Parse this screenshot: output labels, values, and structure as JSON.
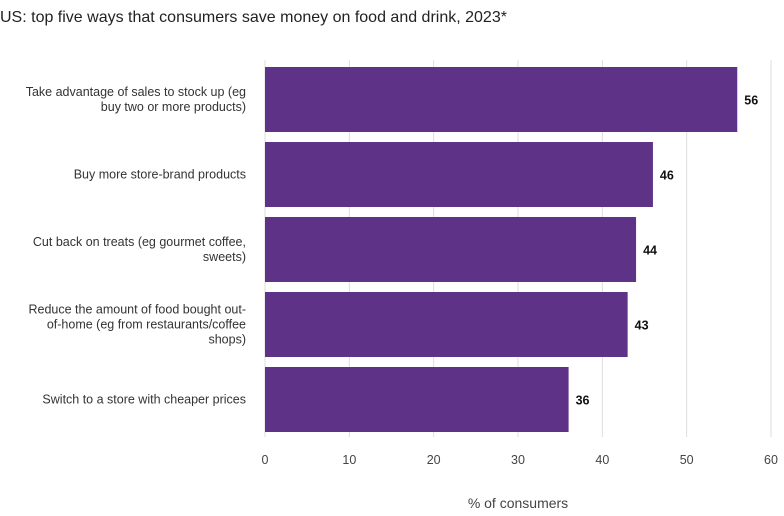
{
  "chart_data": {
    "type": "bar",
    "orientation": "horizontal",
    "title": "US: top five ways that consumers save money on food and drink, 2023*",
    "xlabel": "% of consumers",
    "ylabel": "",
    "categories": [
      [
        "Take advantage of sales to stock up (eg",
        "buy two or more products)"
      ],
      [
        "Buy more store-brand products"
      ],
      [
        "Cut back on treats (eg gourmet coffee,",
        "sweets)"
      ],
      [
        "Reduce the amount of food bought out-",
        "of-home (eg from restaurants/coffee",
        "shops)"
      ],
      [
        "Switch to a store with cheaper prices"
      ]
    ],
    "values": [
      56,
      46,
      44,
      43,
      36
    ],
    "xlim": [
      0,
      60
    ],
    "ticks": [
      0,
      10,
      20,
      30,
      40,
      50,
      60
    ],
    "grid": "vertical",
    "legend": "none",
    "bar_color": "#5e3387",
    "gridline_color": "#dddddd"
  }
}
